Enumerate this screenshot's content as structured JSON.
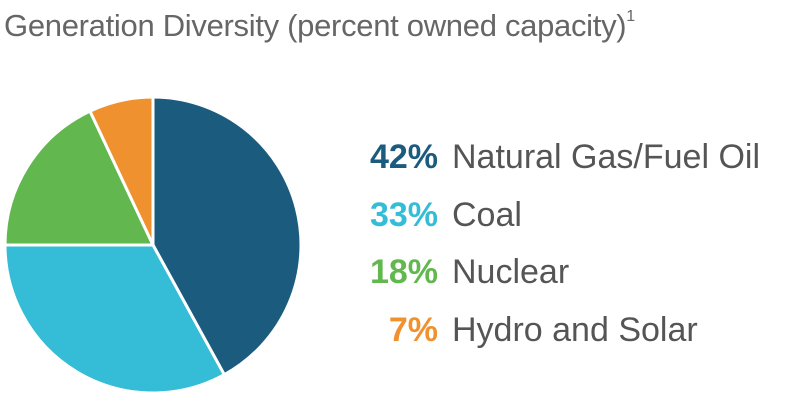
{
  "chart_data": {
    "type": "pie",
    "title": "Generation Diversity (percent owned capacity)",
    "title_footnote": "1",
    "slices": [
      {
        "label": "Natural Gas/Fuel Oil",
        "value": 42,
        "display": "42%",
        "color": "#1b5c7e"
      },
      {
        "label": "Coal",
        "value": 33,
        "display": "33%",
        "color": "#35bcd6"
      },
      {
        "label": "Nuclear",
        "value": 18,
        "display": "18%",
        "color": "#62b74f"
      },
      {
        "label": "Hydro and Solar",
        "value": 7,
        "display": "7%",
        "color": "#f0912f"
      }
    ],
    "legend_position": "right"
  }
}
